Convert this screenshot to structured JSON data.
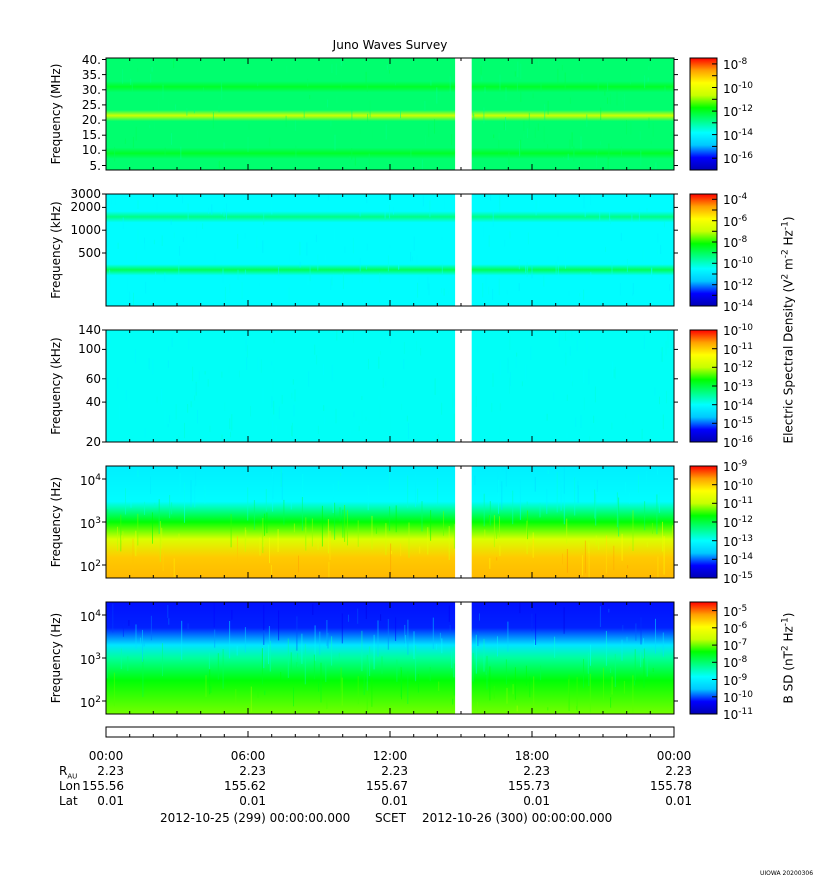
{
  "title": "Juno Waves Survey",
  "footer": {
    "start": "2012-10-25 (299) 00:00:00.000",
    "scet": "SCET",
    "end": "2012-10-26 (300) 00:00:00.000",
    "stamp": "UIOWA 20200306"
  },
  "ephemeris": {
    "rows": [
      {
        "label": "R",
        "sub": "AU",
        "values": [
          "2.23",
          "2.23",
          "2.23",
          "2.23",
          "2.23"
        ]
      },
      {
        "label": "Lon",
        "values": [
          "155.56",
          "155.62",
          "155.67",
          "155.73",
          "155.78"
        ]
      },
      {
        "label": "Lat",
        "values": [
          "0.01",
          "0.01",
          "0.01",
          "0.01",
          "0.01"
        ]
      }
    ]
  },
  "chart_data": {
    "type": "heatmap",
    "x_ticks": [
      "00:00",
      "06:00",
      "12:00",
      "18:00",
      "00:00"
    ],
    "x_range_hours": [
      0,
      24
    ],
    "data_gap_hours": [
      14.75,
      15.45
    ],
    "colors": {
      "scale": [
        "#0000b4",
        "#0000ff",
        "#00c8ff",
        "#00ffff",
        "#00ff80",
        "#00ff00",
        "#c8ff00",
        "#ffff00",
        "#ffa000",
        "#ff0000"
      ],
      "gap": "#ffffff"
    },
    "colorbar_titles": [
      {
        "text": "Electric Spectral Density (V",
        "sup1": "2",
        "mid": " m",
        "sup2": "-2",
        "mid2": " Hz",
        "sup3": "-1",
        "end": ")"
      },
      {
        "text": "B SD (nT",
        "sup1": "2",
        "mid": " Hz",
        "sup2": "-1",
        "end": ")"
      }
    ],
    "panels": [
      {
        "ylabel": "Frequency (MHz)",
        "scale": "linear",
        "ylim": [
          3.5,
          40.5
        ],
        "yticks": [
          {
            "v": 40,
            "t": "40."
          },
          {
            "v": 35,
            "t": "35."
          },
          {
            "v": 30,
            "t": "30."
          },
          {
            "v": 25,
            "t": "25."
          },
          {
            "v": 20,
            "t": "20."
          },
          {
            "v": 15,
            "t": "15."
          },
          {
            "v": 10,
            "t": "10."
          },
          {
            "v": 5,
            "t": "5."
          }
        ],
        "cbar_exp_range": [
          -17,
          -7.5
        ],
        "cbar_labels": [
          -8,
          -10,
          -12,
          -14,
          -16
        ],
        "background_level": 0.46,
        "bands": [
          {
            "y": 21.5,
            "level": 0.68
          },
          {
            "y": 31,
            "level": 0.52
          },
          {
            "y": 9,
            "level": 0.52
          }
        ]
      },
      {
        "ylabel": "Frequency (kHz)",
        "scale": "log",
        "ylim": [
          100,
          3000
        ],
        "yticks": [
          {
            "v": 3000,
            "t": "3000"
          },
          {
            "v": 2000,
            "t": "2000"
          },
          {
            "v": 1000,
            "t": "1000"
          },
          {
            "v": 500,
            "t": "500"
          }
        ],
        "cbar_exp_range": [
          -14,
          -3.5
        ],
        "cbar_labels": [
          -4,
          -6,
          -8,
          -10,
          -12,
          -14
        ],
        "background_level": 0.33,
        "bands": [
          {
            "y": 300,
            "level": 0.48
          },
          {
            "y": 1500,
            "level": 0.44
          }
        ]
      },
      {
        "ylabel": "Frequency (kHz)",
        "scale": "log",
        "ylim": [
          20,
          140
        ],
        "yticks": [
          {
            "v": 140,
            "t": "140"
          },
          {
            "v": 100,
            "t": "100"
          },
          {
            "v": 60,
            "t": "60"
          },
          {
            "v": 40,
            "t": "40"
          },
          {
            "v": 20,
            "t": "20"
          }
        ],
        "cbar_exp_range": [
          -16,
          -10
        ],
        "cbar_labels": [
          -10,
          -11,
          -12,
          -13,
          -14,
          -15,
          -16
        ],
        "background_level": 0.34,
        "bands": []
      },
      {
        "ylabel": "Frequency (Hz)",
        "scale": "log",
        "ylim": [
          50,
          20000
        ],
        "yticks": [
          {
            "v": 10000,
            "t": "10",
            "sup": "4"
          },
          {
            "v": 1000,
            "t": "10",
            "sup": "3"
          },
          {
            "v": 100,
            "t": "10",
            "sup": "2"
          }
        ],
        "cbar_exp_range": [
          -15,
          -9
        ],
        "cbar_labels": [
          -9,
          -10,
          -11,
          -12,
          -13,
          -14,
          -15
        ],
        "level_profile": [
          {
            "y": 20000,
            "level": 0.3
          },
          {
            "y": 3000,
            "level": 0.33
          },
          {
            "y": 1000,
            "level": 0.55
          },
          {
            "y": 400,
            "level": 0.7
          },
          {
            "y": 150,
            "level": 0.84
          },
          {
            "y": 50,
            "level": 0.86
          }
        ]
      },
      {
        "ylabel": "Frequency (Hz)",
        "scale": "log",
        "ylim": [
          50,
          20000
        ],
        "yticks": [
          {
            "v": 10000,
            "t": "10",
            "sup": "4"
          },
          {
            "v": 1000,
            "t": "10",
            "sup": "3"
          },
          {
            "v": 100,
            "t": "10",
            "sup": "2"
          }
        ],
        "cbar_exp_range": [
          -11,
          -4.5
        ],
        "cbar_labels": [
          -5,
          -6,
          -7,
          -8,
          -9,
          -10,
          -11
        ],
        "level_profile": [
          {
            "y": 20000,
            "level": 0.12
          },
          {
            "y": 5000,
            "level": 0.13
          },
          {
            "y": 2000,
            "level": 0.28
          },
          {
            "y": 1000,
            "level": 0.42
          },
          {
            "y": 300,
            "level": 0.55
          },
          {
            "y": 50,
            "level": 0.62
          }
        ]
      }
    ]
  }
}
